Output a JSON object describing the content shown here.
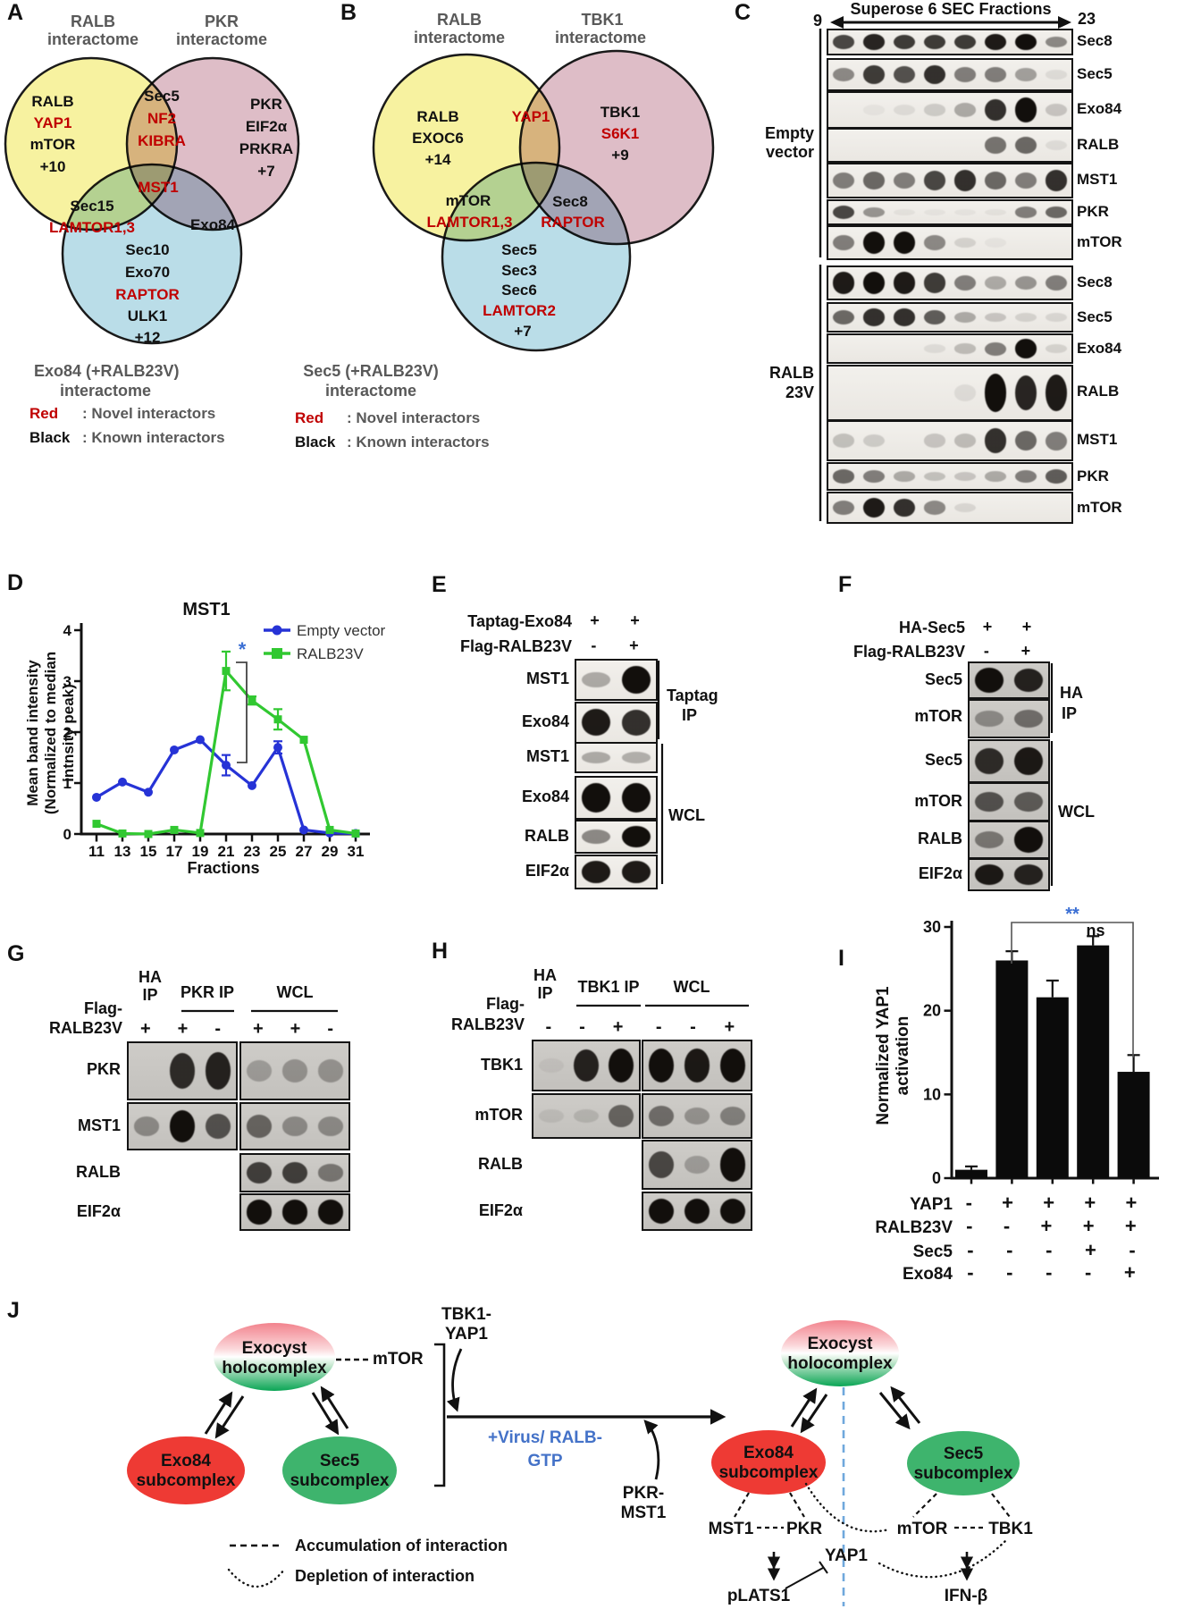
{
  "panel_a": {
    "label": "A",
    "title_left": [
      "RALB",
      "interactome"
    ],
    "title_right": [
      "PKR",
      "interactome"
    ],
    "left": [
      "RALB",
      "YAP1",
      "mTOR",
      "+10"
    ],
    "top_mid": [
      "Sec5",
      "NF2",
      "KIBRA"
    ],
    "right": [
      "PKR",
      "EIF2α",
      "PRKRA",
      "+7"
    ],
    "center": "MST1",
    "left_mid": [
      "Sec15",
      "LAMTOR1,3"
    ],
    "right_mid": "Exo84",
    "bottom": [
      "Sec10",
      "Exo70",
      "RAPTOR",
      "ULK1",
      "+12"
    ],
    "caption": [
      "Exo84 (+RALB23V)",
      "interactome"
    ],
    "legend_red_key": "Red",
    "legend_red_val": ": Novel interactors",
    "legend_black_key": "Black",
    "legend_black_val": ": Known interactors"
  },
  "panel_b": {
    "label": "B",
    "title_left": [
      "RALB",
      "interactome"
    ],
    "title_right": [
      "TBK1",
      "interactome"
    ],
    "left": [
      "RALB",
      "EXOC6",
      "+14"
    ],
    "top_mid": "YAP1",
    "right": [
      "TBK1",
      "S6K1",
      "+9"
    ],
    "left_mid": [
      "mTOR",
      "LAMTOR1,3"
    ],
    "right_mid": [
      "Sec8",
      "RAPTOR"
    ],
    "bottom": [
      "Sec5",
      "Sec3",
      "Sec6",
      "LAMTOR2",
      "+7"
    ],
    "caption": [
      "Sec5 (+RALB23V)",
      "interactome"
    ],
    "legend_red_key": "Red",
    "legend_red_val": ": Novel interactors",
    "legend_black_key": "Black",
    "legend_black_val": ": Known interactors"
  },
  "panel_c": {
    "label": "C",
    "header": "Superose 6 SEC Fractions",
    "frac_start": "9",
    "frac_end": "23",
    "groups": [
      {
        "name": [
          "Empty",
          "vector"
        ],
        "rows": [
          {
            "label": "Sec8",
            "bands": [
              0.75,
              0.9,
              0.8,
              0.8,
              0.8,
              0.95,
              1,
              0.45
            ]
          },
          {
            "label": "Sec5",
            "bands": [
              0.45,
              0.8,
              0.7,
              0.85,
              0.5,
              0.5,
              0.35,
              0.08
            ]
          },
          {
            "label": "Exo84",
            "bands": [
              0,
              0.04,
              0.08,
              0.15,
              0.3,
              0.85,
              1,
              0.18
            ]
          },
          {
            "label": "RALB",
            "bands": [
              0,
              0,
              0,
              0,
              0,
              0.55,
              0.6,
              0.08
            ]
          },
          {
            "label": "MST1",
            "bands": [
              0.5,
              0.6,
              0.5,
              0.75,
              0.85,
              0.6,
              0.5,
              0.85
            ]
          },
          {
            "label": "PKR",
            "bands": [
              0.75,
              0.4,
              0.05,
              0.04,
              0.04,
              0.05,
              0.5,
              0.6
            ]
          },
          {
            "label": "mTOR",
            "bands": [
              0.5,
              1,
              1,
              0.45,
              0.12,
              0.04,
              0,
              0
            ]
          }
        ]
      },
      {
        "name": [
          "RALB",
          "23V"
        ],
        "rows": [
          {
            "label": "Sec8",
            "bands": [
              0.95,
              1,
              0.95,
              0.8,
              0.5,
              0.3,
              0.4,
              0.5
            ]
          },
          {
            "label": "Sec5",
            "bands": [
              0.6,
              0.85,
              0.85,
              0.65,
              0.3,
              0.18,
              0.12,
              0.1
            ]
          },
          {
            "label": "Exo84",
            "bands": [
              0,
              0,
              0,
              0.08,
              0.22,
              0.5,
              1,
              0.12
            ]
          },
          {
            "label": "RALB",
            "bands": [
              0,
              0,
              0,
              0,
              0.08,
              1,
              0.9,
              0.95
            ]
          },
          {
            "label": "MST1",
            "bands": [
              0.2,
              0.15,
              0.02,
              0.18,
              0.22,
              0.85,
              0.6,
              0.5
            ]
          },
          {
            "label": "PKR",
            "bands": [
              0.6,
              0.5,
              0.3,
              0.2,
              0.18,
              0.3,
              0.5,
              0.65
            ]
          },
          {
            "label": "mTOR",
            "bands": [
              0.5,
              0.95,
              0.85,
              0.45,
              0.1,
              0,
              0,
              0
            ]
          }
        ]
      }
    ]
  },
  "panel_d": {
    "label": "D",
    "sig_star": "*",
    "chart_data": {
      "type": "line",
      "title": "MST1",
      "xlabel": "Fractions",
      "ylabel_lines": [
        "Mean band intensity",
        "(Normalized to median",
        "intnsity peak)"
      ],
      "x": [
        11,
        13,
        15,
        17,
        19,
        21,
        23,
        25,
        27,
        29,
        31
      ],
      "ylim": [
        0,
        4
      ],
      "yticks": [
        0,
        1,
        2,
        3,
        4
      ],
      "series": [
        {
          "name": "Empty vector",
          "color": "#2633d6",
          "marker": "circle",
          "values": [
            0.72,
            1.02,
            0.82,
            1.65,
            1.85,
            1.35,
            0.95,
            1.7,
            0.08,
            0.02,
            0.01
          ],
          "errors": [
            0,
            0,
            0,
            0,
            0,
            0.2,
            0,
            0.12,
            0,
            0,
            0
          ]
        },
        {
          "name": "RALB23V",
          "color": "#31c831",
          "marker": "square",
          "values": [
            0.2,
            0.01,
            0,
            0.08,
            0.02,
            3.2,
            2.62,
            2.25,
            1.85,
            0.08,
            0.01
          ],
          "errors": [
            0,
            0,
            0,
            0,
            0,
            0.38,
            0.08,
            0.2,
            0,
            0,
            0
          ]
        }
      ],
      "legend_position": "top-right",
      "grid": false
    }
  },
  "panel_e": {
    "label": "E",
    "cond_labels": [
      "Taptag-Exo84",
      "Flag-RALB23V"
    ],
    "signs": [
      [
        "+",
        "+"
      ],
      [
        "-",
        "+"
      ]
    ],
    "ip_rows": [
      {
        "label": "MST1",
        "bands": [
          0.3,
          1
        ]
      },
      {
        "label": "Exo84",
        "bands": [
          0.95,
          0.85
        ]
      }
    ],
    "ip_bracket": [
      "Taptag",
      "IP"
    ],
    "wcl_rows": [
      {
        "label": "MST1",
        "bands": [
          0.3,
          0.28
        ]
      },
      {
        "label": "Exo84",
        "bands": [
          1,
          1
        ]
      },
      {
        "label": "RALB",
        "bands": [
          0.45,
          1
        ]
      },
      {
        "label": "EIF2α",
        "bands": [
          0.95,
          0.95
        ]
      }
    ],
    "wcl_bracket": "WCL"
  },
  "panel_f": {
    "label": "F",
    "cond_labels": [
      "HA-Sec5",
      "Flag-RALB23V"
    ],
    "signs": [
      [
        "+",
        "+"
      ],
      [
        "-",
        "+"
      ]
    ],
    "ip_rows": [
      {
        "label": "Sec5",
        "bands": [
          1,
          0.9
        ]
      },
      {
        "label": "mTOR",
        "bands": [
          0.35,
          0.5
        ]
      }
    ],
    "ip_bracket": [
      "HA",
      "IP"
    ],
    "wcl_rows": [
      {
        "label": "Sec5",
        "bands": [
          0.85,
          0.95
        ]
      },
      {
        "label": "mTOR",
        "bands": [
          0.65,
          0.6
        ]
      },
      {
        "label": "RALB",
        "bands": [
          0.45,
          1
        ]
      },
      {
        "label": "EIF2α",
        "bands": [
          0.95,
          0.9
        ]
      }
    ],
    "wcl_bracket": "WCL"
  },
  "panel_g": {
    "label": "G",
    "headers": [
      "HA",
      "IP",
      "PKR IP",
      "WCL"
    ],
    "cond_label": [
      "Flag-",
      "RALB23V"
    ],
    "signs_left": [
      "+",
      "+",
      "-"
    ],
    "signs_right": [
      "+",
      "+",
      "-"
    ],
    "rows": [
      {
        "label": "PKR",
        "left": [
          0,
          0.85,
          0.9
        ],
        "right": [
          0.25,
          0.3,
          0.3
        ]
      },
      {
        "label": "MST1",
        "left": [
          0.35,
          1,
          0.65
        ],
        "right": [
          0.55,
          0.35,
          0.35
        ]
      },
      {
        "label": "RALB",
        "right": [
          0.75,
          0.75,
          0.45
        ]
      },
      {
        "label": "EIF2α",
        "right": [
          1,
          1,
          1
        ]
      }
    ]
  },
  "panel_h": {
    "label": "H",
    "headers": [
      "HA",
      "IP",
      "TBK1 IP",
      "WCL"
    ],
    "cond_label": [
      "Flag-",
      "RALB23V"
    ],
    "signs_left": [
      "-",
      "-",
      "+"
    ],
    "signs_right": [
      "-",
      "-",
      "+"
    ],
    "rows": [
      {
        "label": "TBK1",
        "left": [
          0.05,
          0.9,
          1
        ],
        "right": [
          1,
          0.95,
          1
        ]
      },
      {
        "label": "mTOR",
        "left": [
          0.08,
          0.12,
          0.55
        ],
        "right": [
          0.5,
          0.3,
          0.4
        ]
      },
      {
        "label": "RALB",
        "right": [
          0.7,
          0.25,
          1
        ]
      },
      {
        "label": "EIF2α",
        "right": [
          1,
          1,
          1
        ]
      }
    ]
  },
  "panel_i": {
    "label": "I",
    "sig_star": "**",
    "sig_ns": "ns",
    "chart_data": {
      "type": "bar",
      "ylabel_lines": [
        "Normalized YAP1",
        "activation"
      ],
      "ylim": [
        0,
        30
      ],
      "yticks": [
        0,
        10,
        20,
        30
      ],
      "values": [
        1,
        26,
        21.6,
        27.8,
        12.7
      ],
      "errors": [
        0.4,
        1.1,
        2,
        1.1,
        2
      ],
      "bar_color": "#0b0b0b",
      "rows": [
        {
          "label": "YAP1",
          "signs": [
            "-",
            "+",
            "+",
            "+",
            "+"
          ]
        },
        {
          "label": "RALB23V",
          "signs": [
            "-",
            "-",
            "+",
            "+",
            "+"
          ]
        },
        {
          "label": "Sec5",
          "signs": [
            "-",
            "-",
            "-",
            "+",
            "-"
          ]
        },
        {
          "label": "Exo84",
          "signs": [
            "-",
            "-",
            "-",
            "-",
            "+"
          ]
        }
      ]
    }
  },
  "panel_j": {
    "label": "J",
    "holo": [
      "Exocyst",
      "holocomplex"
    ],
    "exo84_sub": [
      "Exo84",
      "subcomplex"
    ],
    "sec5_sub": [
      "Sec5",
      "subcomplex"
    ],
    "mtor_tag": "mTOR",
    "tbk1_yap1": [
      "TBK1-",
      "YAP1"
    ],
    "virus": [
      "+Virus/ RALB-",
      "GTP"
    ],
    "pkr_mst1": [
      "PKR-",
      "MST1"
    ],
    "mst1": "MST1",
    "pkr": "PKR",
    "mtor": "mTOR",
    "tbk1": "TBK1",
    "yap1": "YAP1",
    "plats1": "pLATS1",
    "ifnb": "IFN-β",
    "legend_dash": "Accumulation of interaction",
    "legend_dot": "Depletion of interaction"
  }
}
